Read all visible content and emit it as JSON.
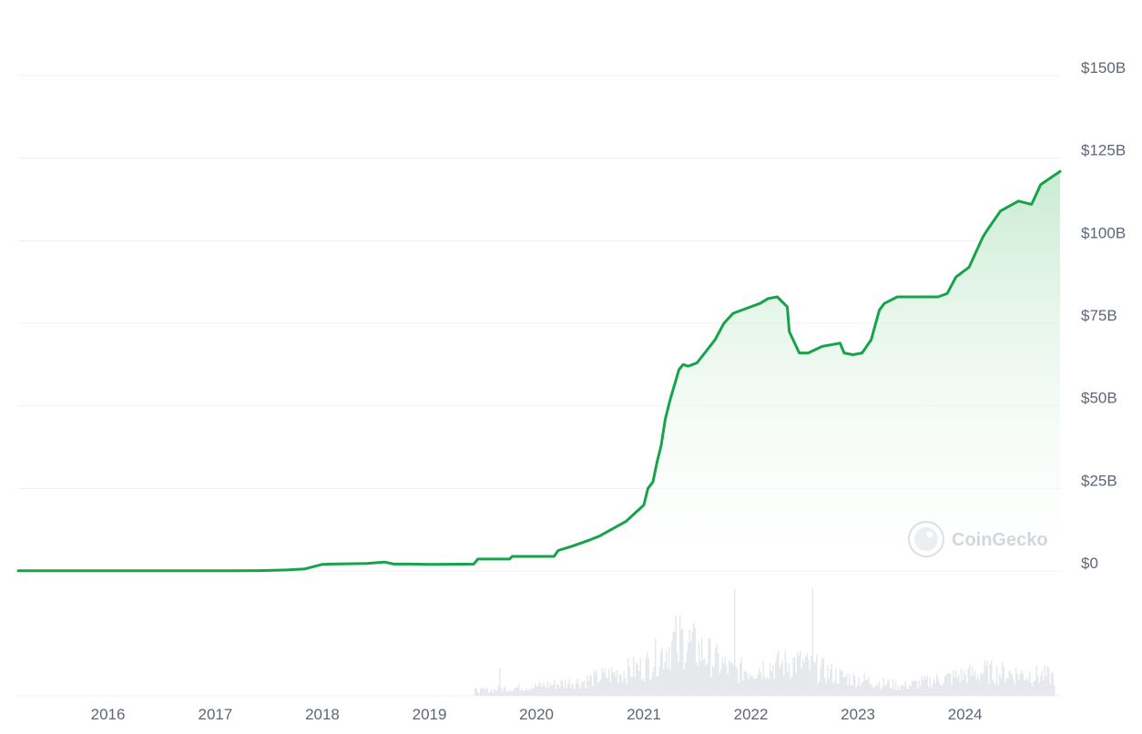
{
  "watermark": {
    "text": "CoinGecko",
    "icon": "coingecko-logo-icon"
  },
  "colors": {
    "line": "#16a34a",
    "area_top": "#c7ead0",
    "area_bottom": "#ffffff",
    "grid": "#eef0f3",
    "tick_text": "#5d6676",
    "volume": "#e5e7eb"
  },
  "chart_data": {
    "type": "area",
    "title": "",
    "xlabel": "",
    "ylabel": "",
    "x_ticks": [
      "2016",
      "2017",
      "2018",
      "2019",
      "2020",
      "2021",
      "2022",
      "2023",
      "2024"
    ],
    "y_ticks": [
      "$0",
      "$25B",
      "$50B",
      "$75B",
      "$100B",
      "$125B",
      "$150B"
    ],
    "ylim": [
      0,
      150
    ],
    "y_unit": "billions USD",
    "xlim": [
      "2015-03-01",
      "2024-11-20"
    ],
    "grid": true,
    "legend": "none",
    "series": [
      {
        "x": [
          "2015-03-01",
          "2016-06-01",
          "2017-01-01",
          "2017-06-01",
          "2017-09-01",
          "2017-11-01",
          "2017-12-01",
          "2018-01-01",
          "2018-02-01",
          "2018-06-01",
          "2018-08-01",
          "2018-09-01",
          "2018-11-01",
          "2019-01-01",
          "2019-06-01",
          "2019-06-15",
          "2019-10-01",
          "2019-10-10",
          "2020-03-01",
          "2020-03-15",
          "2020-05-01",
          "2020-07-01",
          "2020-08-01",
          "2020-11-01",
          "2021-01-01",
          "2021-01-15",
          "2021-02-01",
          "2021-02-15",
          "2021-03-01",
          "2021-03-15",
          "2021-04-01",
          "2021-05-01",
          "2021-05-15",
          "2021-06-01",
          "2021-07-01",
          "2021-09-01",
          "2021-10-01",
          "2021-11-01",
          "2021-12-01",
          "2022-02-01",
          "2022-03-01",
          "2022-04-01",
          "2022-05-05",
          "2022-05-12",
          "2022-06-15",
          "2022-07-15",
          "2022-09-01",
          "2022-11-01",
          "2022-11-15",
          "2022-12-15",
          "2023-01-15",
          "2023-02-15",
          "2023-03-15",
          "2023-04-01",
          "2023-05-15",
          "2023-07-15",
          "2023-10-01",
          "2023-11-01",
          "2023-12-01",
          "2024-01-15",
          "2024-03-01",
          "2024-03-15",
          "2024-05-01",
          "2024-07-01",
          "2024-08-15",
          "2024-09-15",
          "2024-11-20"
        ],
        "values": [
          0.05,
          0.05,
          0.05,
          0.1,
          0.3,
          0.6,
          1.3,
          2.0,
          2.1,
          2.3,
          2.7,
          2.1,
          2.1,
          2.0,
          2.1,
          3.6,
          3.6,
          4.4,
          4.4,
          6.2,
          7.5,
          9.4,
          10.5,
          15.0,
          20.0,
          25.0,
          27.0,
          33.0,
          38.0,
          46.0,
          52.0,
          61.0,
          62.5,
          62.0,
          63.0,
          70.0,
          75.0,
          78.0,
          79.0,
          81.0,
          82.5,
          83.0,
          80.0,
          72.5,
          66.0,
          66.0,
          68.0,
          69.0,
          66.0,
          65.5,
          66.0,
          70.0,
          79.0,
          81.0,
          83.0,
          83.0,
          83.0,
          84.0,
          89.0,
          92.0,
          101.0,
          103.0,
          109.0,
          112.0,
          111.0,
          117.0,
          121.0
        ]
      }
    ],
    "volume": {
      "note": "secondary bottom panel, unlabeled",
      "x": [
        "2019-06-01",
        "2020-01-01",
        "2020-06-01",
        "2021-01-01",
        "2021-05-01",
        "2021-11-01",
        "2022-06-01",
        "2022-11-01",
        "2023-06-01",
        "2024-03-01",
        "2024-11-01"
      ],
      "values": [
        0.05,
        0.1,
        0.15,
        0.3,
        0.6,
        0.25,
        0.35,
        0.2,
        0.1,
        0.25,
        0.2
      ]
    }
  }
}
